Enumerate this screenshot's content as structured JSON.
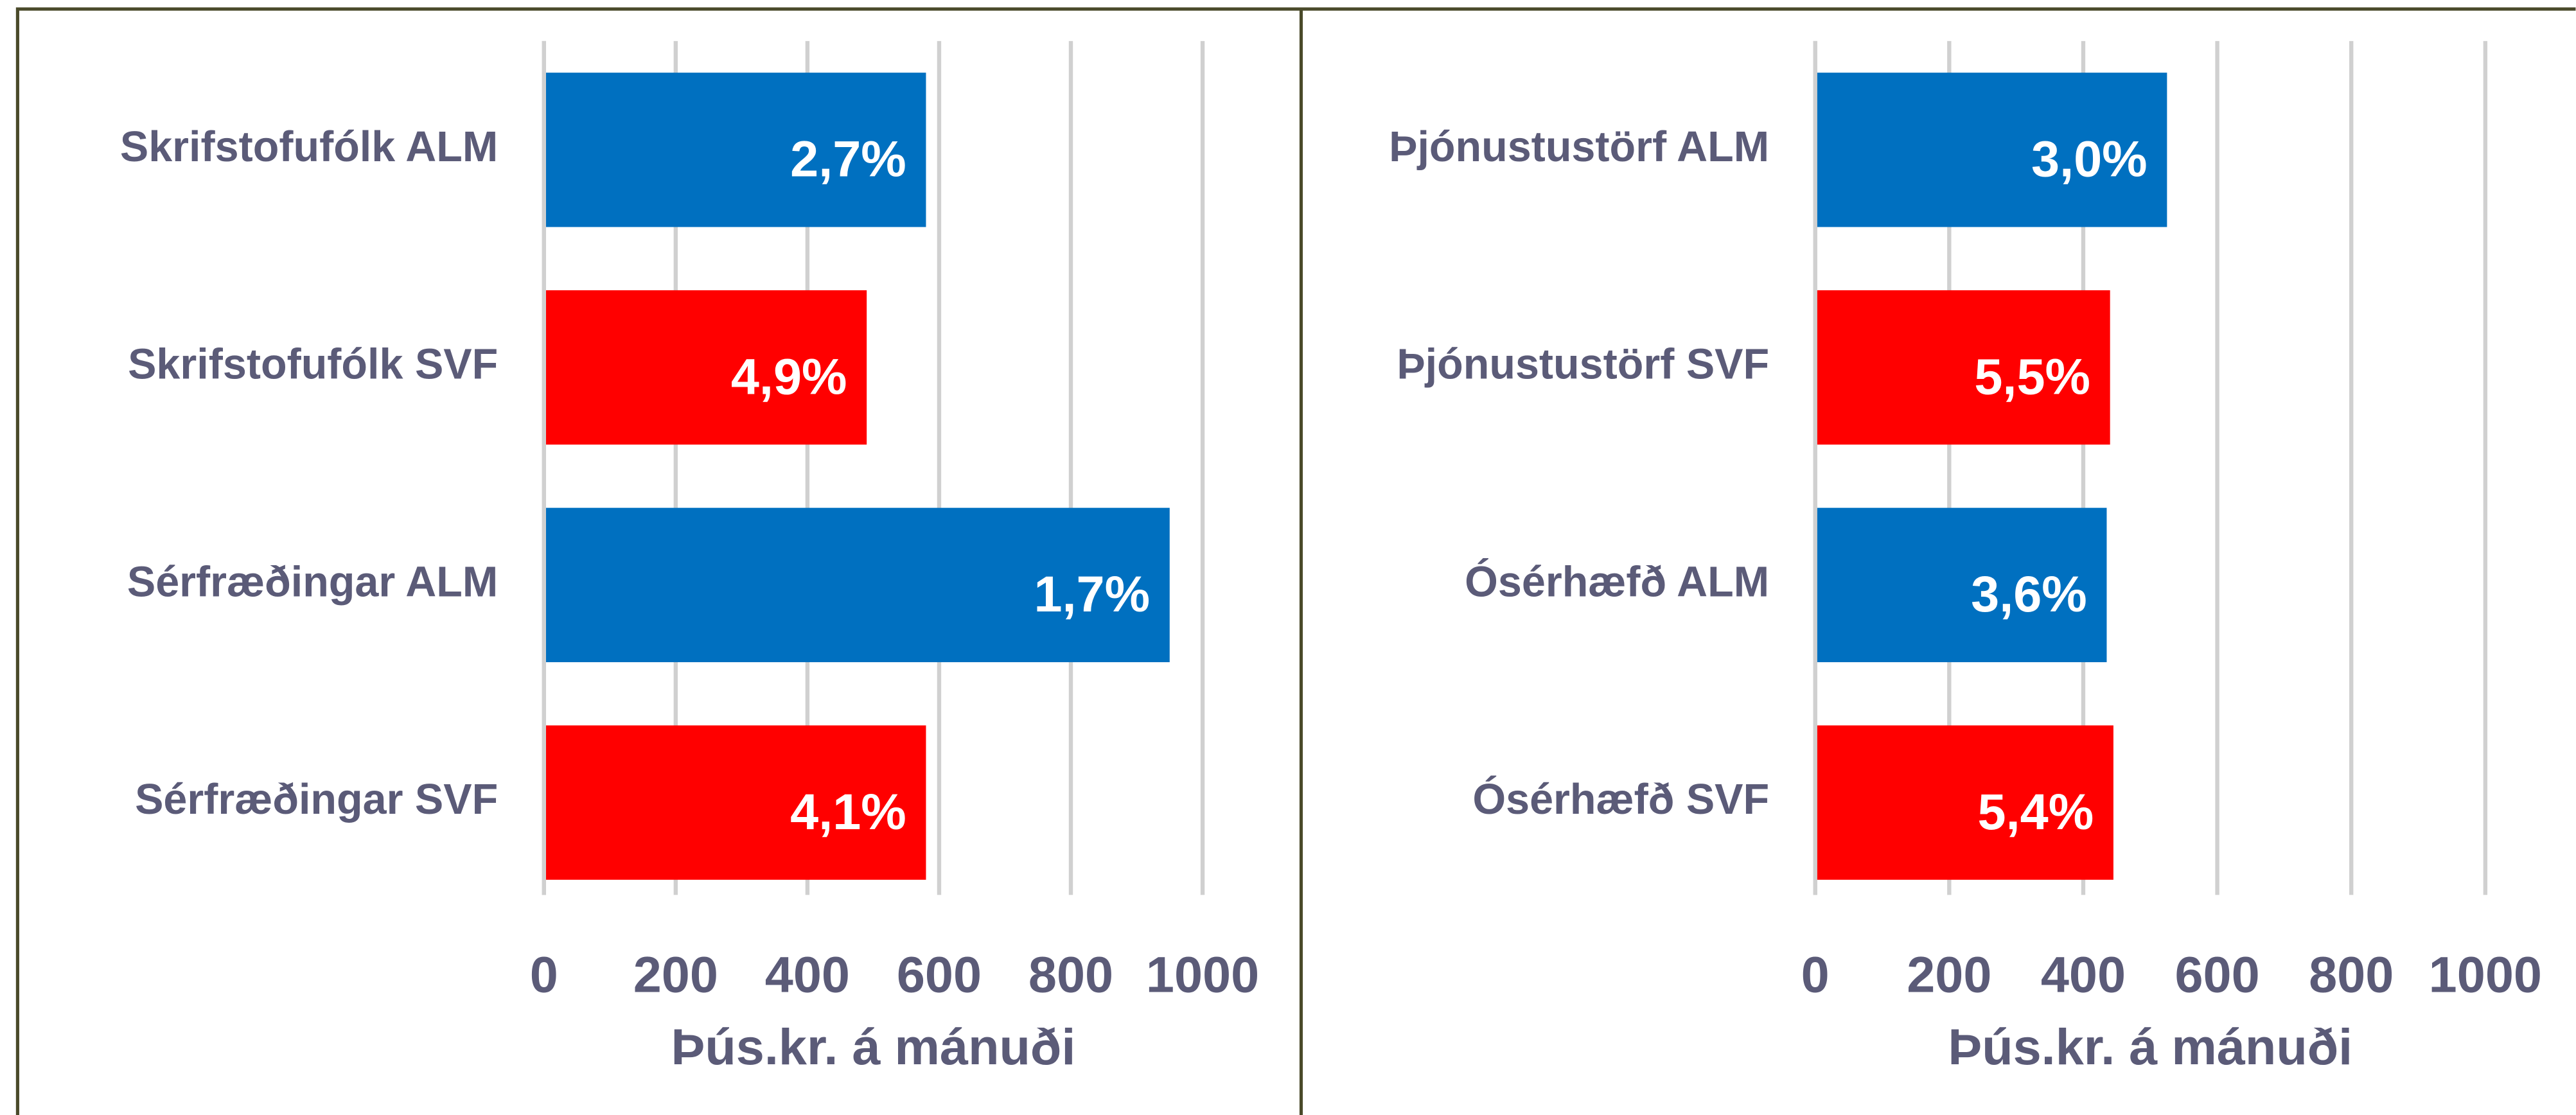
{
  "chart_data": [
    {
      "type": "hbar",
      "categories": [
        "Skrifstofufólk  ALM",
        "Skrifstofufólk SVF",
        "Sérfræðingar ALM",
        "Sérfræðingar SVF"
      ],
      "values": [
        580,
        490,
        950,
        580
      ],
      "bar_labels": [
        "2,7%",
        "4,9%",
        "1,7%",
        "4,1%"
      ],
      "colors": [
        "#0070c0",
        "#ff0000",
        "#0070c0",
        "#ff0000"
      ],
      "xlim": [
        0,
        1000
      ],
      "xticks": [
        0,
        200,
        400,
        600,
        800,
        1000
      ],
      "xlabel": "Þús.kr. á mánuði",
      "grid": true
    },
    {
      "type": "hbar",
      "categories": [
        "Þjónustustörf ALM",
        "Þjónustustörf SVF",
        "Ósérhæfð ALM",
        "Ósérhæfð SVF"
      ],
      "values": [
        525,
        440,
        435,
        445
      ],
      "bar_labels": [
        "3,0%",
        "5,5%",
        "3,6%",
        "5,4%"
      ],
      "colors": [
        "#0070c0",
        "#ff0000",
        "#0070c0",
        "#ff0000"
      ],
      "xlim": [
        0,
        1000
      ],
      "xticks": [
        0,
        200,
        400,
        600,
        800,
        1000
      ],
      "xlabel": "Þús.kr. á mánuði",
      "grid": true
    }
  ]
}
